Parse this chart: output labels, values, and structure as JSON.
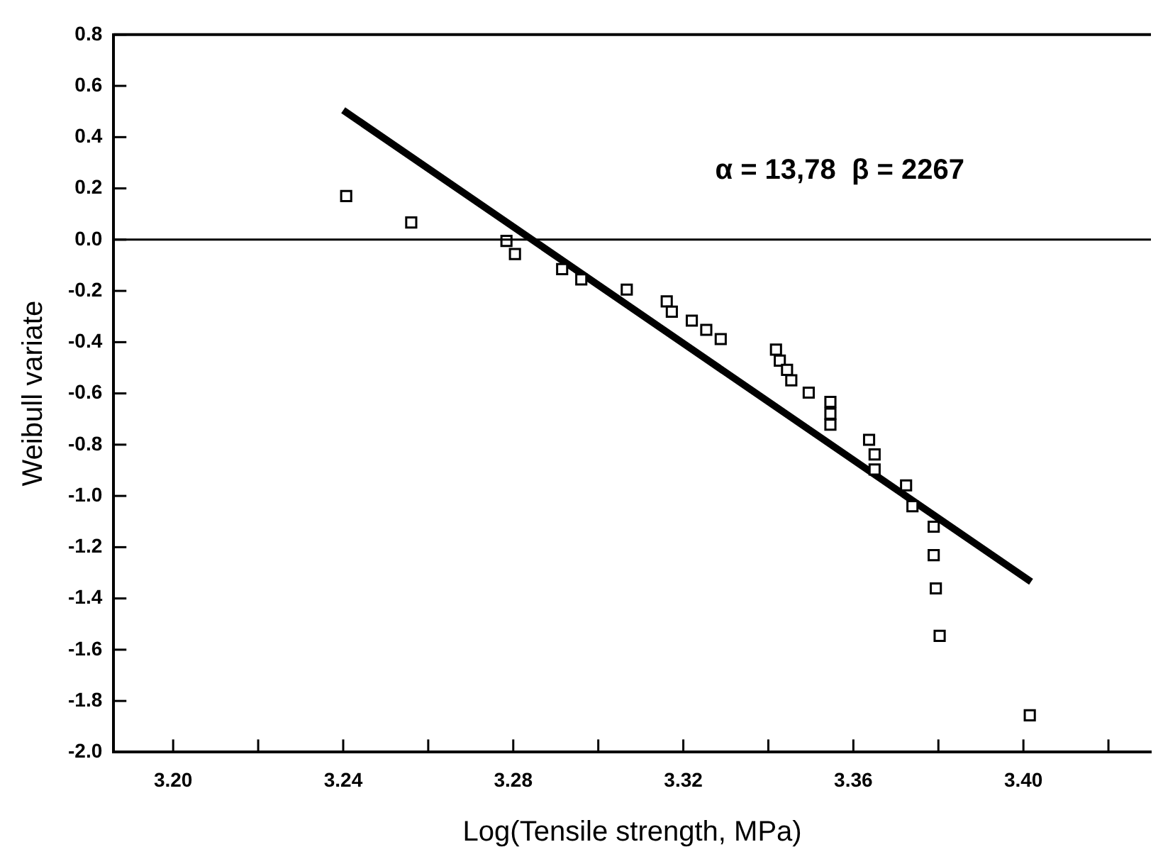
{
  "chart_data": {
    "type": "scatter",
    "xlabel": "Log(Tensile strength, MPa)",
    "ylabel": "Weibull variate",
    "annotations": [
      "α = 13,78  β = 2267"
    ],
    "xlim": [
      3.186,
      3.43
    ],
    "ylim": [
      -2.0,
      0.8
    ],
    "xticks": [
      {
        "value": 3.2,
        "label": "3.20"
      },
      {
        "value": 3.22,
        "label": null
      },
      {
        "value": 3.24,
        "label": "3.24"
      },
      {
        "value": 3.26,
        "label": null
      },
      {
        "value": 3.28,
        "label": "3.28"
      },
      {
        "value": 3.3,
        "label": null
      },
      {
        "value": 3.32,
        "label": "3.32"
      },
      {
        "value": 3.34,
        "label": null
      },
      {
        "value": 3.36,
        "label": "3.36"
      },
      {
        "value": 3.38,
        "label": null
      },
      {
        "value": 3.4,
        "label": "3.40"
      },
      {
        "value": 3.42,
        "label": null
      }
    ],
    "yticks": [
      {
        "value": 0.8,
        "label": "0.8"
      },
      {
        "value": 0.6,
        "label": "0.6"
      },
      {
        "value": 0.4,
        "label": "0.4"
      },
      {
        "value": 0.2,
        "label": "0.2"
      },
      {
        "value": 0,
        "label": "0.0"
      },
      {
        "value": -0.2,
        "label": "-0.2"
      },
      {
        "value": -0.4,
        "label": "-0.4"
      },
      {
        "value": -0.6,
        "label": "-0.6"
      },
      {
        "value": -0.8,
        "label": "-0.8"
      },
      {
        "value": -1.0,
        "label": "-1.0"
      },
      {
        "value": -1.2,
        "label": "-1.2"
      },
      {
        "value": -1.4,
        "label": "-1.4"
      },
      {
        "value": -1.6,
        "label": "-1.6"
      },
      {
        "value": -1.8,
        "label": "-1.8"
      },
      {
        "value": -2.0,
        "label": "-2.0"
      }
    ],
    "ref_lines": [
      {
        "axis": "y",
        "value": 0,
        "color": "#000000"
      }
    ],
    "series": [
      {
        "type": "scatter",
        "color": "#000000",
        "marker": "square",
        "x": [
          3.2407,
          3.256,
          3.2784,
          3.2804,
          3.2915,
          3.296,
          3.3067,
          3.3161,
          3.3173,
          3.322,
          3.3254,
          3.3288,
          3.3418,
          3.3427,
          3.3444,
          3.3454,
          3.3495,
          3.3546,
          3.3546,
          3.3546,
          3.3637,
          3.365,
          3.365,
          3.3724,
          3.3739,
          3.3789,
          3.3789,
          3.3794,
          3.3803,
          3.4015
        ],
        "values": [
          0.17,
          0.067,
          -0.005,
          -0.056,
          -0.115,
          -0.155,
          -0.195,
          -0.241,
          -0.281,
          -0.316,
          -0.352,
          -0.388,
          -0.429,
          -0.472,
          -0.508,
          -0.549,
          -0.597,
          -0.633,
          -0.679,
          -0.722,
          -0.781,
          -0.838,
          -0.897,
          -0.959,
          -1.04,
          -1.12,
          -1.231,
          -1.361,
          -1.546,
          -1.856
        ]
      },
      {
        "type": "line",
        "color": "#000000",
        "marker": "none",
        "x": [
          3.24,
          3.4018
        ],
        "values": [
          0.505,
          -1.335
        ]
      }
    ]
  }
}
